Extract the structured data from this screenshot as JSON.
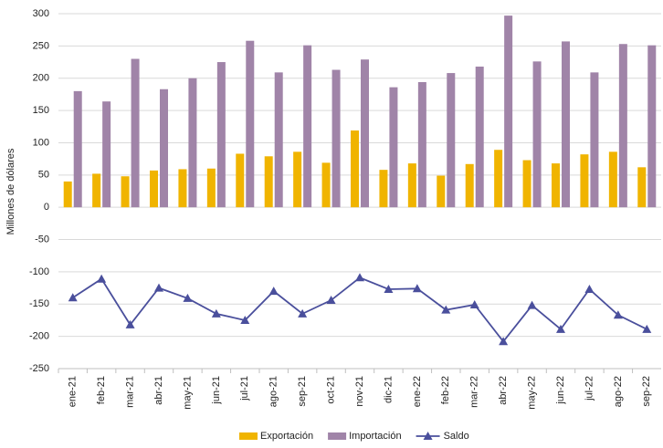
{
  "chart_data": {
    "type": "bar",
    "y_label": "Millones de dólares",
    "categories": [
      "ene-21",
      "feb-21",
      "mar-21",
      "abr-21",
      "may-21",
      "jun-21",
      "jul-21",
      "ago-21",
      "sep-21",
      "oct-21",
      "nov-21",
      "dic-21",
      "ene-22",
      "feb-22",
      "mar-22",
      "abr-22",
      "may-22",
      "jun-22",
      "jul-22",
      "ago-22",
      "sep-22"
    ],
    "series": [
      {
        "name": "Exportación",
        "type": "bar",
        "color": "#f0b400",
        "values": [
          40,
          52,
          48,
          57,
          59,
          60,
          83,
          79,
          86,
          69,
          119,
          58,
          68,
          49,
          67,
          89,
          73,
          68,
          82,
          86,
          62
        ]
      },
      {
        "name": "Importación",
        "type": "bar",
        "color": "#a084a8",
        "values": [
          180,
          164,
          230,
          183,
          200,
          225,
          258,
          209,
          251,
          213,
          229,
          186,
          194,
          208,
          218,
          297,
          226,
          257,
          209,
          253,
          251
        ]
      },
      {
        "name": "Saldo",
        "type": "line",
        "color": "#4a4f9c",
        "values": [
          -140,
          -111,
          -182,
          -125,
          -141,
          -165,
          -175,
          -130,
          -165,
          -144,
          -109,
          -127,
          -126,
          -159,
          -151,
          -208,
          -152,
          -189,
          -127,
          -167,
          -189
        ]
      }
    ],
    "ylim": [
      -250,
      300
    ],
    "yticks": [
      -250,
      -200,
      -150,
      -100,
      -50,
      0,
      50,
      100,
      150,
      200,
      250,
      300
    ],
    "grid": true,
    "legend": "bottom"
  }
}
